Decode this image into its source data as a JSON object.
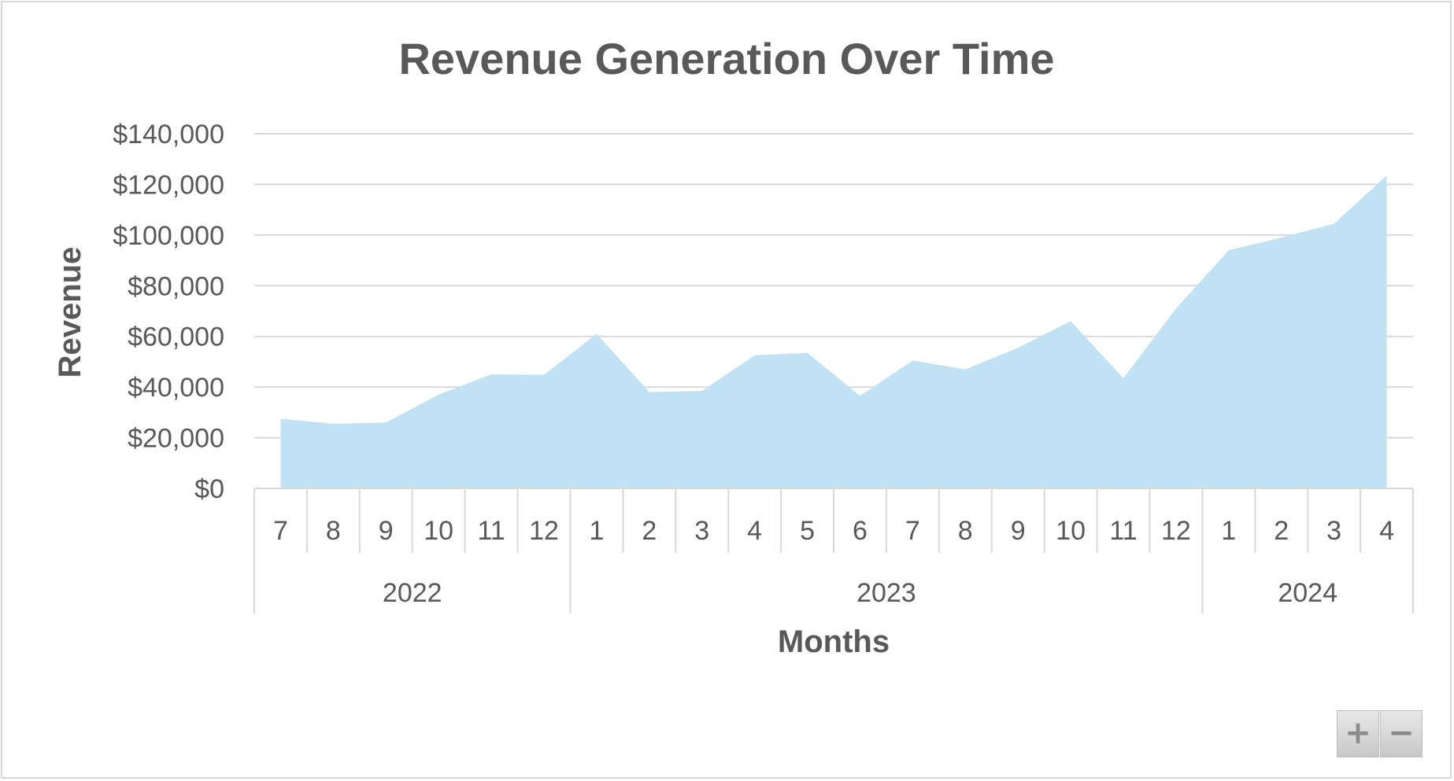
{
  "chart_data": {
    "type": "area",
    "title": "Revenue Generation Over Time",
    "xlabel": "Months",
    "ylabel": "Revenue",
    "ylim": [
      0,
      140000
    ],
    "yticks": [
      0,
      20000,
      40000,
      60000,
      80000,
      100000,
      120000,
      140000
    ],
    "ytick_labels": [
      "$0",
      "$20,000",
      "$40,000",
      "$60,000",
      "$80,000",
      "$100,000",
      "$120,000",
      "$140,000"
    ],
    "grid": true,
    "fill_color": "#c1e2f4",
    "categories": [
      "7",
      "8",
      "9",
      "10",
      "11",
      "12",
      "1",
      "2",
      "3",
      "4",
      "5",
      "6",
      "7",
      "8",
      "9",
      "10",
      "11",
      "12",
      "1",
      "2",
      "3",
      "4"
    ],
    "year_groups": [
      {
        "label": "2022",
        "count": 6
      },
      {
        "label": "2023",
        "count": 12
      },
      {
        "label": "2024",
        "count": 4
      }
    ],
    "series": [
      {
        "values": [
          27500,
          25500,
          26000,
          37000,
          45000,
          44800,
          61000,
          38000,
          38500,
          52500,
          53500,
          36500,
          50500,
          47000,
          55500,
          66000,
          43500,
          71000,
          94000,
          99000,
          104500,
          123500
        ]
      }
    ]
  },
  "controls": {
    "zoom_in_label": "+",
    "zoom_out_label": "−"
  }
}
